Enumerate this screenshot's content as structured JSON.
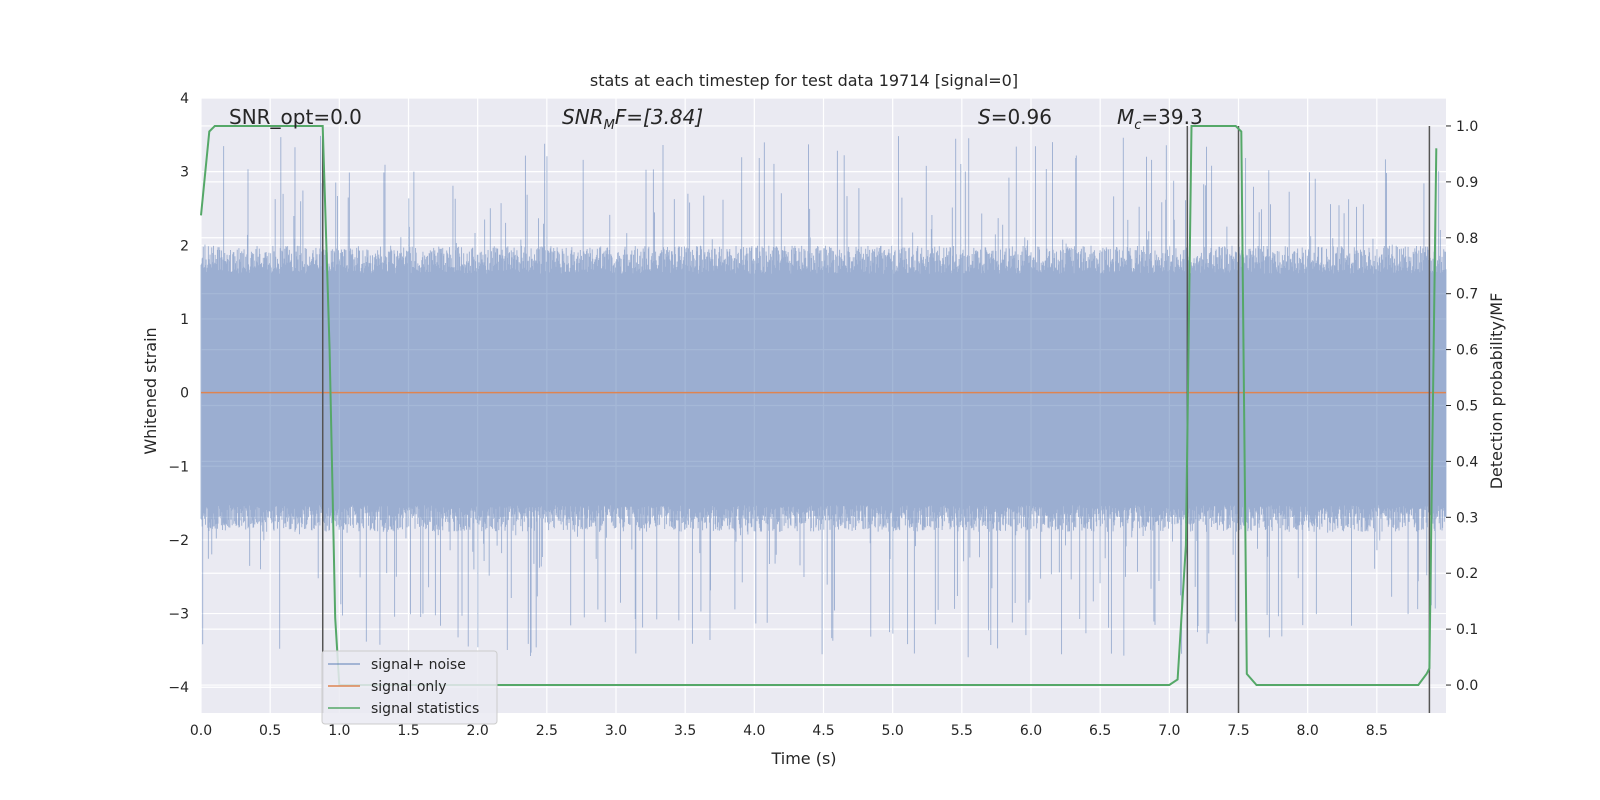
{
  "chart_data": {
    "type": "line",
    "title": "stats at each timestep for test data 19714 [signal=0]",
    "xlabel": "Time (s)",
    "ylabel": "Whitened strain",
    "y2label": "Detection probability/MF",
    "xlim": [
      0.0,
      9.0
    ],
    "ylim": [
      -4.35,
      4.0
    ],
    "y2lim": [
      -0.05,
      1.05
    ],
    "xticks": [
      0.0,
      0.5,
      1.0,
      1.5,
      2.0,
      2.5,
      3.0,
      3.5,
      4.0,
      4.5,
      5.0,
      5.5,
      6.0,
      6.5,
      7.0,
      7.5,
      8.0,
      8.5
    ],
    "xtick_labels": [
      "0.0",
      "0.5",
      "1.0",
      "1.5",
      "2.0",
      "2.5",
      "3.0",
      "3.5",
      "4.0",
      "4.5",
      "5.0",
      "5.5",
      "6.0",
      "6.5",
      "7.0",
      "7.5",
      "8.0",
      "8.5"
    ],
    "yticks": [
      4,
      3,
      2,
      1,
      0,
      -1,
      -2,
      -3,
      -4
    ],
    "ytick_labels": [
      "4",
      "3",
      "2",
      "1",
      "0",
      "−1",
      "−2",
      "−3",
      "−4"
    ],
    "y2ticks": [
      1.0,
      0.9,
      0.8,
      0.7,
      0.6,
      0.5,
      0.4,
      0.3,
      0.2,
      0.1,
      0.0
    ],
    "y2tick_labels": [
      "1.0",
      "0.9",
      "0.8",
      "0.7",
      "0.6",
      "0.5",
      "0.4",
      "0.3",
      "0.2",
      "0.1",
      "0.0"
    ],
    "grid": true,
    "legend_position": "lower-left",
    "annotations": {
      "snr_opt": "SNR_opt=0.0",
      "snr_mf_main": "SNR",
      "snr_mf_sub": "M",
      "snr_mf_rest": "F=[3.84]",
      "s_var": "S",
      "s_rest": "=0.96",
      "mc_var": "M",
      "mc_sub": "c",
      "mc_rest": "=39.3"
    },
    "series": [
      {
        "name": "signal+ noise",
        "color": "#4c72b0",
        "kind": "noise",
        "typical_range": [
          -1.8,
          1.9
        ],
        "extreme_range": [
          -3.6,
          3.5
        ]
      },
      {
        "name": "signal only",
        "color": "#dd8452",
        "x": [
          0.0,
          9.0
        ],
        "y": [
          0.0,
          0.0
        ]
      },
      {
        "name": "signal statistics",
        "color": "#55a868",
        "axis": "y2",
        "x": [
          0.0,
          0.06,
          0.1,
          0.2,
          0.4,
          0.6,
          0.8,
          0.88,
          0.93,
          0.97,
          1.0,
          1.5,
          2.0,
          3.0,
          4.0,
          5.0,
          6.0,
          6.8,
          7.0,
          7.06,
          7.12,
          7.16,
          7.2,
          7.3,
          7.4,
          7.48,
          7.52,
          7.56,
          7.63,
          7.7,
          8.0,
          8.5,
          8.8,
          8.86,
          8.88,
          8.93
        ],
        "y": [
          0.84,
          0.99,
          1.0,
          1.0,
          1.0,
          1.0,
          1.0,
          1.0,
          0.6,
          0.12,
          0.0,
          0.0,
          0.0,
          0.0,
          0.0,
          0.0,
          0.0,
          0.0,
          0.0,
          0.01,
          0.25,
          1.0,
          1.0,
          1.0,
          1.0,
          1.0,
          0.99,
          0.02,
          0.0,
          0.0,
          0.0,
          0.0,
          0.0,
          0.02,
          0.03,
          0.96
        ]
      }
    ],
    "vertical_markers": {
      "color": "#555555",
      "x": [
        0.88,
        7.13,
        7.5,
        8.88
      ],
      "y2_top": 1.0
    }
  }
}
